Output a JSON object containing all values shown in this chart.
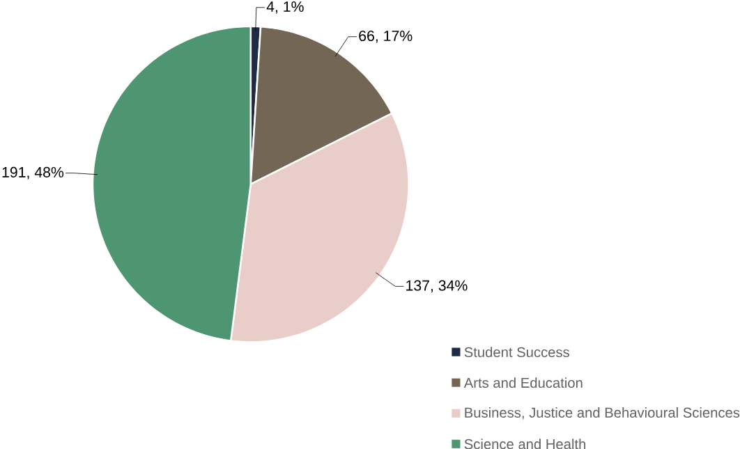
{
  "chart_data": {
    "type": "pie",
    "categories": [
      "Student Success",
      "Arts and Education",
      "Business, Justice and Behavioural Sciences",
      "Science and Health"
    ],
    "values": [
      4,
      66,
      137,
      191
    ],
    "colors": [
      "#1f2a44",
      "#736654",
      "#e8cdc8",
      "#4e9572"
    ],
    "value_labels": [
      "4, 1%",
      "66, 17%",
      "137, 34%",
      "191, 48%"
    ],
    "legend": "bottom right"
  }
}
